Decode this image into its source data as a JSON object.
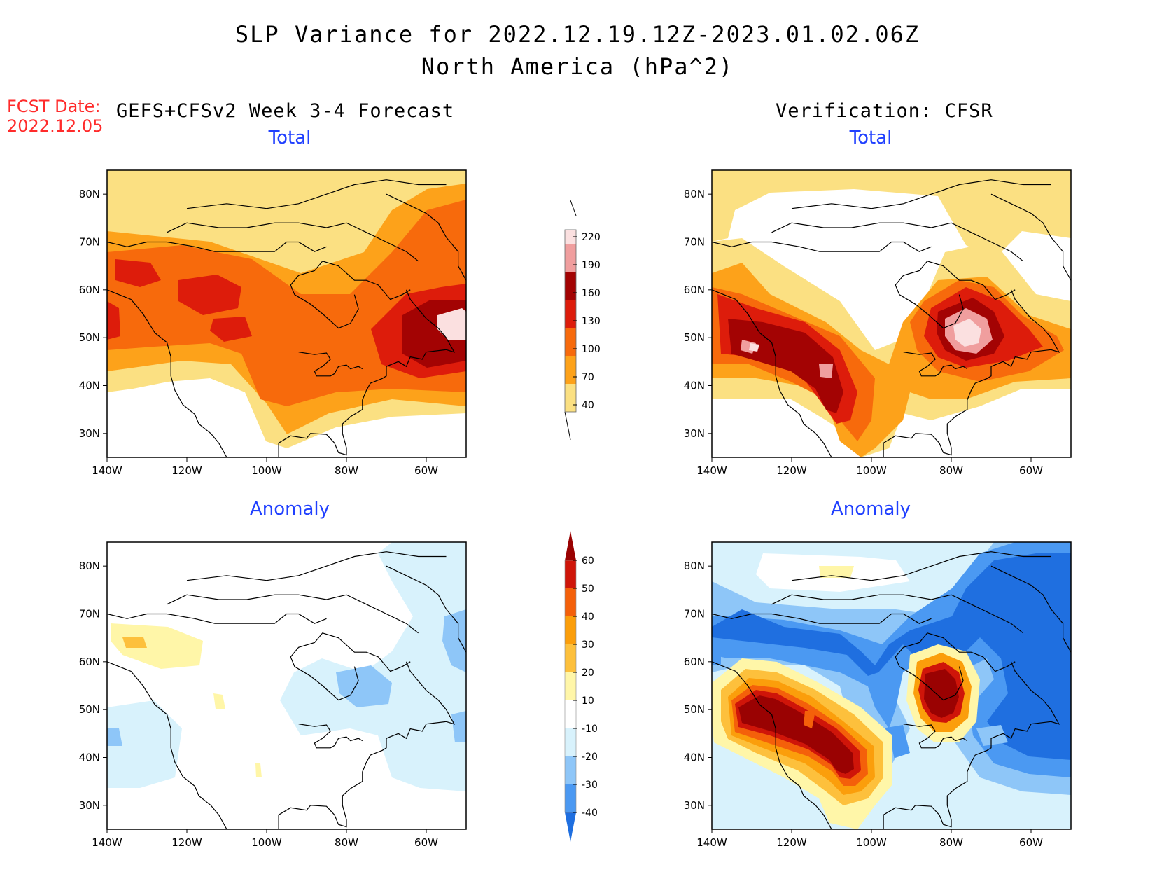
{
  "title": {
    "line1": "SLP Variance for 2022.12.19.12Z-2023.01.02.06Z",
    "line2": "North America (hPa^2)"
  },
  "forecast_date": {
    "label": "FCST Date:",
    "value": "2022.12.05"
  },
  "left_header": "GEFS+CFSv2 Week 3-4 Forecast",
  "right_header": "Verification: CFSR",
  "panels": [
    {
      "id": "fcst-total",
      "title": "Total"
    },
    {
      "id": "verif-total",
      "title": "Total"
    },
    {
      "id": "fcst-anomaly",
      "title": "Anomaly"
    },
    {
      "id": "verif-anomaly",
      "title": "Anomaly"
    }
  ],
  "axes": {
    "lat_labels": [
      "80N",
      "70N",
      "60N",
      "50N",
      "40N",
      "30N"
    ],
    "lon_labels": [
      "140W",
      "120W",
      "100W",
      "80W",
      "60W"
    ],
    "lat_range": [
      25,
      85
    ],
    "lon_range": [
      -140,
      -50
    ]
  },
  "colorbars": {
    "total": {
      "levels": [
        "40",
        "70",
        "100",
        "130",
        "160",
        "190",
        "220"
      ],
      "colors": [
        "#fbe082",
        "#fda21a",
        "#f76a0c",
        "#dd1c0b",
        "#a30303",
        "#f09e9e",
        "#fbe0e0"
      ]
    },
    "anomaly": {
      "levels": [
        "-40",
        "-30",
        "-20",
        "-10",
        "10",
        "20",
        "30",
        "40",
        "50",
        "60"
      ],
      "colors": [
        "#1f6fe0",
        "#4b99f2",
        "#8ec6f8",
        "#d8f2fc",
        "#ffffff",
        "#fff6a8",
        "#fdc03c",
        "#fb9e0b",
        "#f4600a",
        "#cf1509",
        "#9a0202"
      ]
    }
  },
  "chart_data": [
    {
      "type": "heatmap",
      "panel": "GEFS+CFSv2 Week 3-4 Forecast - Total",
      "xlim": [
        -140,
        -50
      ],
      "ylim": [
        25,
        85
      ],
      "notable_features": [
        {
          "lon": -52,
          "lat": 52,
          "value": 220
        },
        {
          "lon": -60,
          "lat": 48,
          "value": 160
        },
        {
          "lon": -125,
          "lat": 62,
          "value": 130
        },
        {
          "lon": -112,
          "lat": 58,
          "value": 130
        }
      ]
    },
    {
      "type": "heatmap",
      "panel": "Verification: CFSR - Total",
      "xlim": [
        -140,
        -50
      ],
      "ylim": [
        25,
        85
      ],
      "notable_features": [
        {
          "lon": -76,
          "lat": 51,
          "value": 220
        },
        {
          "lon": -130,
          "lat": 48,
          "value": 190
        },
        {
          "lon": -105,
          "lat": 45,
          "value": 190
        },
        {
          "lon": -118,
          "lat": 48,
          "value": 160
        }
      ]
    },
    {
      "type": "heatmap",
      "panel": "GEFS+CFSv2 Week 3-4 Forecast - Anomaly",
      "xlim": [
        -140,
        -50
      ],
      "ylim": [
        25,
        85
      ],
      "notable_features": [
        {
          "lon": -127,
          "lat": 63,
          "value": 20
        },
        {
          "lon": -80,
          "lat": 57,
          "value": -20
        },
        {
          "lon": -55,
          "lat": 63,
          "value": -20
        }
      ]
    },
    {
      "type": "heatmap",
      "panel": "Verification: CFSR - Anomaly",
      "xlim": [
        -140,
        -50
      ],
      "ylim": [
        25,
        85
      ],
      "notable_features": [
        {
          "lon": -125,
          "lat": 48,
          "value": 60
        },
        {
          "lon": -105,
          "lat": 40,
          "value": 60
        },
        {
          "lon": -78,
          "lat": 51,
          "value": 60
        },
        {
          "lon": -100,
          "lat": 65,
          "value": -40
        },
        {
          "lon": -55,
          "lat": 60,
          "value": -40
        }
      ]
    }
  ]
}
